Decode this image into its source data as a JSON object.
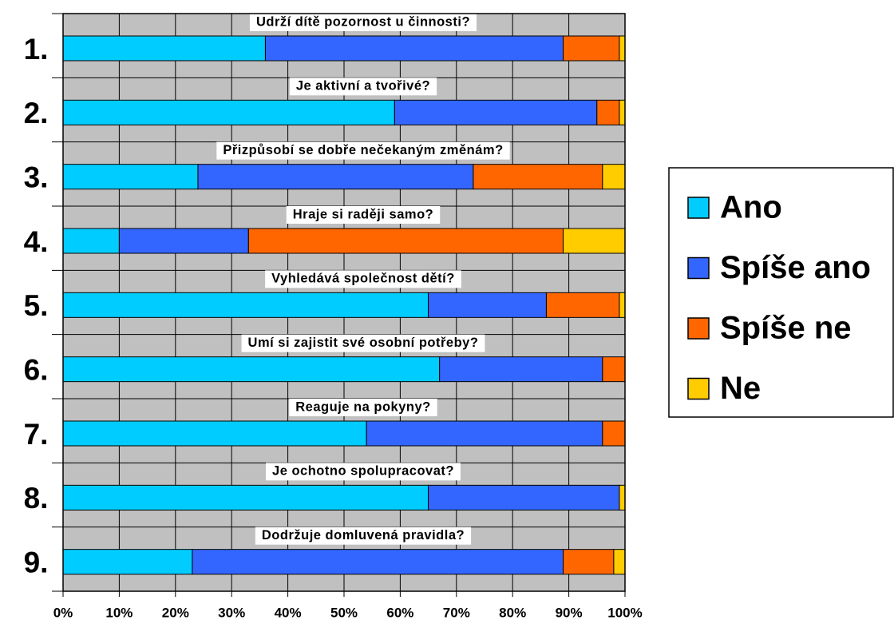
{
  "chart_data": {
    "type": "stacked-bar-horizontal",
    "categories": [
      "1.",
      "2.",
      "3.",
      "4.",
      "5.",
      "6.",
      "7.",
      "8.",
      "9."
    ],
    "annotations": [
      "Udrží dítě pozornost u činnosti?",
      "Je aktivní a tvořivé?",
      "Přizpůsobí se dobře nečekaným změnám?",
      "Hraje si raději samo?",
      "Vyhledává společnost dětí?",
      "Umí si zajistit své osobní potřeby?",
      "Reaguje na pokyny?",
      "Je ochotno spolupracovat?",
      "Dodržuje domluvená pravidla?"
    ],
    "series": [
      {
        "name": "Ano",
        "color": "#00ccff",
        "values": [
          36,
          59,
          24,
          10,
          65,
          67,
          54,
          65,
          23
        ]
      },
      {
        "name": "Spíše ano",
        "color": "#3366ff",
        "values": [
          53,
          36,
          49,
          23,
          21,
          29,
          42,
          34,
          66
        ]
      },
      {
        "name": "Spíše ne",
        "color": "#ff6600",
        "values": [
          10,
          4,
          23,
          56,
          13,
          4,
          4,
          0,
          9
        ]
      },
      {
        "name": "Ne",
        "color": "#ffcc00",
        "values": [
          1,
          1,
          4,
          11,
          1,
          0,
          0,
          1,
          2
        ]
      }
    ],
    "xlim": [
      0,
      100
    ],
    "xticks": [
      {
        "value": 0,
        "label": "0%"
      },
      {
        "value": 10,
        "label": "10%"
      },
      {
        "value": 20,
        "label": "20%"
      },
      {
        "value": 30,
        "label": "30%"
      },
      {
        "value": 40,
        "label": "40%"
      },
      {
        "value": 50,
        "label": "50%"
      },
      {
        "value": 60,
        "label": "60%"
      },
      {
        "value": 70,
        "label": "70%"
      },
      {
        "value": 80,
        "label": "80%"
      },
      {
        "value": 90,
        "label": "90%"
      },
      {
        "value": 100,
        "label": "100%"
      }
    ],
    "grid": true,
    "legend": "right"
  }
}
